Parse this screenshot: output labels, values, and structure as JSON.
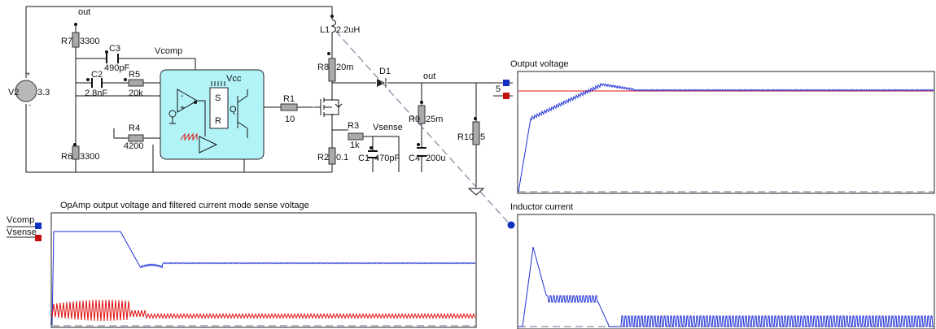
{
  "schematic": {
    "source": {
      "name": "V2",
      "value": "3.3",
      "plus": "+",
      "minus": "-"
    },
    "nets": {
      "out_top": "out",
      "out_right": "out",
      "vcomp": "Vcomp",
      "vsense": "Vsense",
      "vcc": "Vcc"
    },
    "components": {
      "r7": {
        "name": "R7",
        "value": "3300"
      },
      "r6": {
        "name": "R6",
        "value": "3300"
      },
      "c3": {
        "name": "C3",
        "value": "490pF"
      },
      "c2": {
        "name": "C2",
        "value": "2.8nF"
      },
      "r5": {
        "name": "R5",
        "value": "20k"
      },
      "r4": {
        "name": "R4",
        "value": "4200"
      },
      "r1": {
        "name": "R1",
        "value": "10"
      },
      "l1": {
        "name": "L1",
        "value": "2.2uH"
      },
      "r8": {
        "name": "R8",
        "value": "20m"
      },
      "d1": {
        "name": "D1"
      },
      "r3": {
        "name": "R3",
        "value": "1k"
      },
      "c1": {
        "name": "C1",
        "value": "470pF"
      },
      "r2": {
        "name": "R2",
        "value": "0.1"
      },
      "r9": {
        "name": "R9",
        "value": "25m"
      },
      "c4": {
        "name": "C4",
        "value": "200u"
      },
      "r10": {
        "name": "R10",
        "value": "5"
      }
    },
    "latch": {
      "s": "S",
      "r": "R",
      "q": "Q"
    },
    "probe_value": "5"
  },
  "scopes": {
    "opamp": {
      "title": "OpAmp output voltage and filtered current mode sense voltage",
      "probes": [
        "Vcomp",
        "Vsense"
      ]
    },
    "output": {
      "title": "Output voltage"
    },
    "inductor": {
      "title": "Inductor current"
    }
  },
  "colors": {
    "trace_primary": "#1f2fd6",
    "trace_secondary": "#e01010",
    "block_fill": "#b2f3f8",
    "probe_blue": "#1030c0",
    "probe_red": "#c01010"
  }
}
